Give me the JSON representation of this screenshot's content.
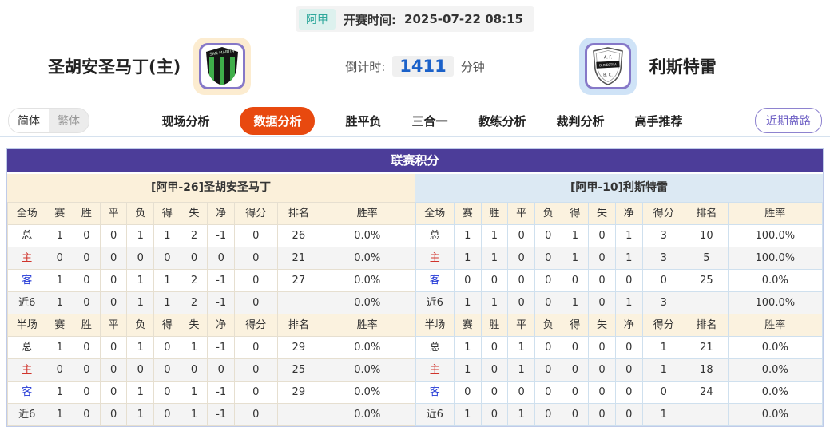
{
  "header": {
    "league": "阿甲",
    "kickoff_label": "开赛时间:",
    "kickoff_time": "2025-07-22 08:15",
    "home_team": "圣胡安圣马丁(主)",
    "away_team": "利斯特雷",
    "countdown_label": "倒计时:",
    "countdown_value": "1411",
    "countdown_unit": "分钟",
    "home_badge": {
      "arc_text": "SAN MARTIN"
    },
    "away_badge": {
      "top": "A. F.",
      "band": "D.RIESTRA",
      "bottom": "B. C."
    }
  },
  "nav": {
    "lang_simplified": "简体",
    "lang_traditional": "繁体",
    "tabs": [
      {
        "label": "现场分析",
        "active": false
      },
      {
        "label": "数据分析",
        "active": true
      },
      {
        "label": "胜平负",
        "active": false
      },
      {
        "label": "三合一",
        "active": false
      },
      {
        "label": "教练分析",
        "active": false
      },
      {
        "label": "裁判分析",
        "active": false
      },
      {
        "label": "高手推荐",
        "active": false
      }
    ],
    "recent_handicap": "近期盘路"
  },
  "league_table": {
    "title": "联赛积分",
    "columns": [
      "赛",
      "胜",
      "平",
      "负",
      "得",
      "失",
      "净",
      "得分",
      "排名",
      "胜率"
    ],
    "left": {
      "team_title": "[阿甲-26]圣胡安圣马丁",
      "sections": [
        {
          "name": "全场",
          "rows": [
            {
              "label": "总",
              "values": [
                "1",
                "0",
                "0",
                "1",
                "1",
                "2",
                "-1",
                "0",
                "26",
                "0.0%"
              ]
            },
            {
              "label": "主",
              "values": [
                "0",
                "0",
                "0",
                "0",
                "0",
                "0",
                "0",
                "0",
                "21",
                "0.0%"
              ]
            },
            {
              "label": "客",
              "values": [
                "1",
                "0",
                "0",
                "1",
                "1",
                "2",
                "-1",
                "0",
                "27",
                "0.0%"
              ]
            },
            {
              "label": "近6",
              "values": [
                "1",
                "0",
                "0",
                "1",
                "1",
                "2",
                "-1",
                "0",
                "",
                "0.0%"
              ]
            }
          ]
        },
        {
          "name": "半场",
          "rows": [
            {
              "label": "总",
              "values": [
                "1",
                "0",
                "0",
                "1",
                "0",
                "1",
                "-1",
                "0",
                "29",
                "0.0%"
              ]
            },
            {
              "label": "主",
              "values": [
                "0",
                "0",
                "0",
                "0",
                "0",
                "0",
                "0",
                "0",
                "25",
                "0.0%"
              ]
            },
            {
              "label": "客",
              "values": [
                "1",
                "0",
                "0",
                "1",
                "0",
                "1",
                "-1",
                "0",
                "29",
                "0.0%"
              ]
            },
            {
              "label": "近6",
              "values": [
                "1",
                "0",
                "0",
                "1",
                "0",
                "1",
                "-1",
                "0",
                "",
                "0.0%"
              ]
            }
          ]
        }
      ]
    },
    "right": {
      "team_title": "[阿甲-10]利斯特雷",
      "sections": [
        {
          "name": "全场",
          "rows": [
            {
              "label": "总",
              "values": [
                "1",
                "1",
                "0",
                "0",
                "1",
                "0",
                "1",
                "3",
                "10",
                "100.0%"
              ]
            },
            {
              "label": "主",
              "values": [
                "1",
                "1",
                "0",
                "0",
                "1",
                "0",
                "1",
                "3",
                "5",
                "100.0%"
              ]
            },
            {
              "label": "客",
              "values": [
                "0",
                "0",
                "0",
                "0",
                "0",
                "0",
                "0",
                "0",
                "25",
                "0.0%"
              ]
            },
            {
              "label": "近6",
              "values": [
                "1",
                "1",
                "0",
                "0",
                "1",
                "0",
                "1",
                "3",
                "",
                "100.0%"
              ]
            }
          ]
        },
        {
          "name": "半场",
          "rows": [
            {
              "label": "总",
              "values": [
                "1",
                "0",
                "1",
                "0",
                "0",
                "0",
                "0",
                "1",
                "21",
                "0.0%"
              ]
            },
            {
              "label": "主",
              "values": [
                "1",
                "0",
                "1",
                "0",
                "0",
                "0",
                "0",
                "1",
                "18",
                "0.0%"
              ]
            },
            {
              "label": "客",
              "values": [
                "0",
                "0",
                "0",
                "0",
                "0",
                "0",
                "0",
                "0",
                "24",
                "0.0%"
              ]
            },
            {
              "label": "近6",
              "values": [
                "1",
                "0",
                "1",
                "0",
                "0",
                "0",
                "0",
                "1",
                "",
                "0.0%"
              ]
            }
          ]
        }
      ]
    }
  },
  "colors": {
    "board_header": "#4c3d99",
    "active_tab": "#e8490f",
    "countdown_blue": "#1b61c9",
    "league_teal": "#2fa89c",
    "home_header_bg": "#fbf0da",
    "away_header_bg": "#dce9f3",
    "label_red": "#d0342c",
    "label_blue": "#2238d6"
  }
}
